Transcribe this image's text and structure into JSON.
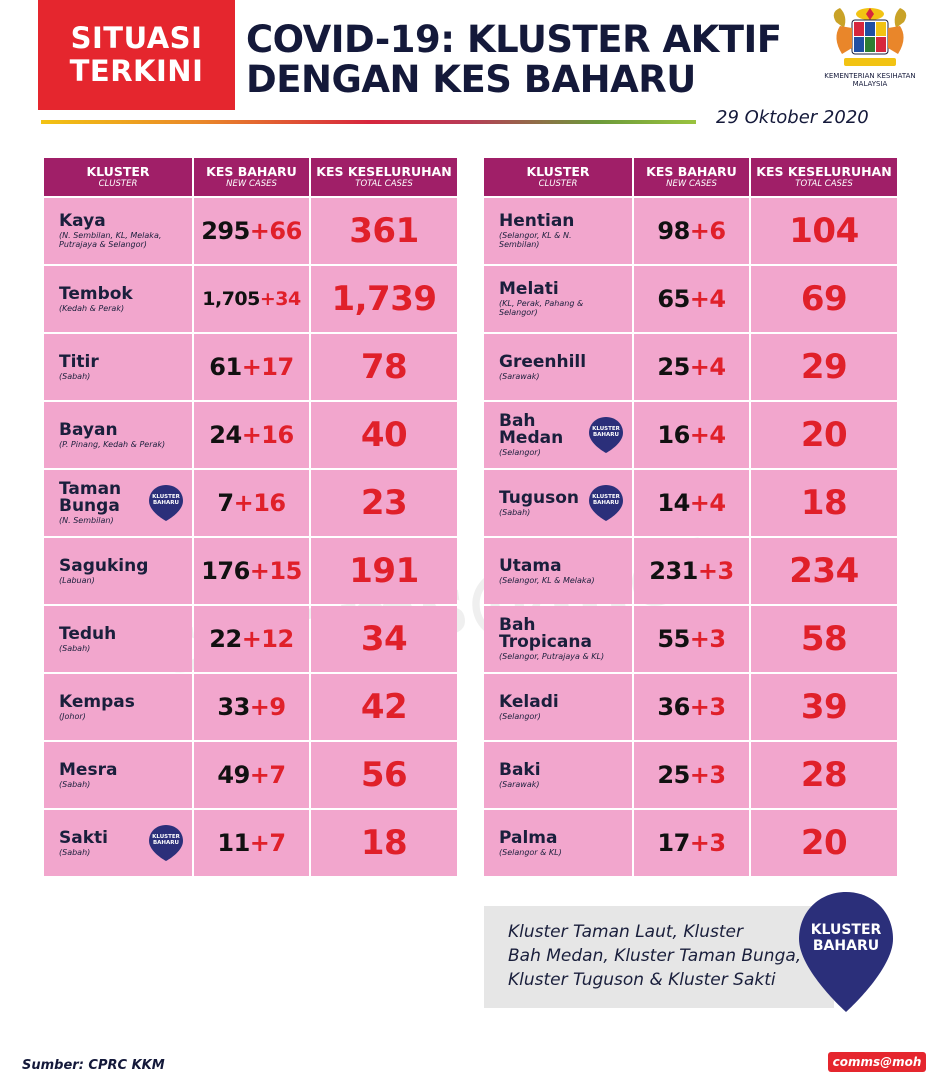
{
  "badge": {
    "line1": "SITUASI",
    "line2": "TERKINI"
  },
  "headline": {
    "line1": "COVID-19: KLUSTER AKTIF",
    "line2": "DENGAN KES BAHARU"
  },
  "ministry": {
    "line1": "KEMENTERIAN KESIHATAN",
    "line2": "MALAYSIA"
  },
  "date": "29 Oktober 2020",
  "headers": {
    "cluster": "KLUSTER",
    "cluster_sub": "CLUSTER",
    "new": "KES BAHARU",
    "new_sub": "NEW CASES",
    "total": "KES KESELURUHAN",
    "total_sub": "TOTAL CASES"
  },
  "pin_label": "KLUSTER BAHARU",
  "left_rows": [
    {
      "name": "Kaya",
      "loc": "(N. Sembilan, KL, Melaka, Putrajaya & Selangor)",
      "base": "295",
      "plus": "+66",
      "total": "361"
    },
    {
      "name": "Tembok",
      "loc": "(Kedah & Perak)",
      "base": "1,705",
      "plus": "+34",
      "total": "1,739"
    },
    {
      "name": "Titir",
      "loc": "(Sabah)",
      "base": "61",
      "plus": "+17",
      "total": "78"
    },
    {
      "name": "Bayan",
      "loc": "(P. Pinang, Kedah & Perak)",
      "base": "24",
      "plus": "+16",
      "total": "40"
    },
    {
      "name": "Taman Bunga",
      "loc": "(N. Sembilan)",
      "base": "7",
      "plus": "+16",
      "total": "23"
    },
    {
      "name": "Saguking",
      "loc": "(Labuan)",
      "base": "176",
      "plus": "+15",
      "total": "191"
    },
    {
      "name": "Teduh",
      "loc": "(Sabah)",
      "base": "22",
      "plus": "+12",
      "total": "34"
    },
    {
      "name": "Kempas",
      "loc": "(Johor)",
      "base": "33",
      "plus": "+9",
      "total": "42"
    },
    {
      "name": "Mesra",
      "loc": "(Sabah)",
      "base": "49",
      "plus": "+7",
      "total": "56"
    },
    {
      "name": "Sakti",
      "loc": "(Sabah)",
      "base": "11",
      "plus": "+7",
      "total": "18"
    }
  ],
  "right_rows": [
    {
      "name": "Hentian",
      "loc": "(Selangor, KL & N. Sembilan)",
      "base": "98",
      "plus": "+6",
      "total": "104"
    },
    {
      "name": "Melati",
      "loc": "(KL, Perak, Pahang & Selangor)",
      "base": "65",
      "plus": "+4",
      "total": "69"
    },
    {
      "name": "Greenhill",
      "loc": "(Sarawak)",
      "base": "25",
      "plus": "+4",
      "total": "29"
    },
    {
      "name": "Bah Medan",
      "loc": "(Selangor)",
      "base": "16",
      "plus": "+4",
      "total": "20"
    },
    {
      "name": "Tuguson",
      "loc": "(Sabah)",
      "base": "14",
      "plus": "+4",
      "total": "18"
    },
    {
      "name": "Utama",
      "loc": "(Selangor, KL & Melaka)",
      "base": "231",
      "plus": "+3",
      "total": "234"
    },
    {
      "name": "Bah Tropicana",
      "loc": "(Selangor, Putrajaya & KL)",
      "base": "55",
      "plus": "+3",
      "total": "58"
    },
    {
      "name": "Keladi",
      "loc": "(Selangor)",
      "base": "36",
      "plus": "+3",
      "total": "39"
    },
    {
      "name": "Baki",
      "loc": "(Sarawak)",
      "base": "25",
      "plus": "+3",
      "total": "28"
    },
    {
      "name": "Palma",
      "loc": "(Selangor & KL)",
      "base": "17",
      "plus": "+3",
      "total": "20"
    }
  ],
  "note": {
    "line1": "Kluster Taman Laut, Kluster",
    "line2": "Bah Medan, Kluster Taman Bunga,",
    "line3": "Kluster Tuguson & Kluster Sakti"
  },
  "big_pin": {
    "line1": "KLUSTER",
    "line2": "BAHARU"
  },
  "source": "Sumber: CPRC KKM",
  "credit": "comms@moh",
  "watermark": "comms@moh",
  "colors": {
    "red": "#e5262e",
    "header": "#a01f68",
    "cell": "#f2a6cd",
    "navy": "#2b2f7a"
  }
}
